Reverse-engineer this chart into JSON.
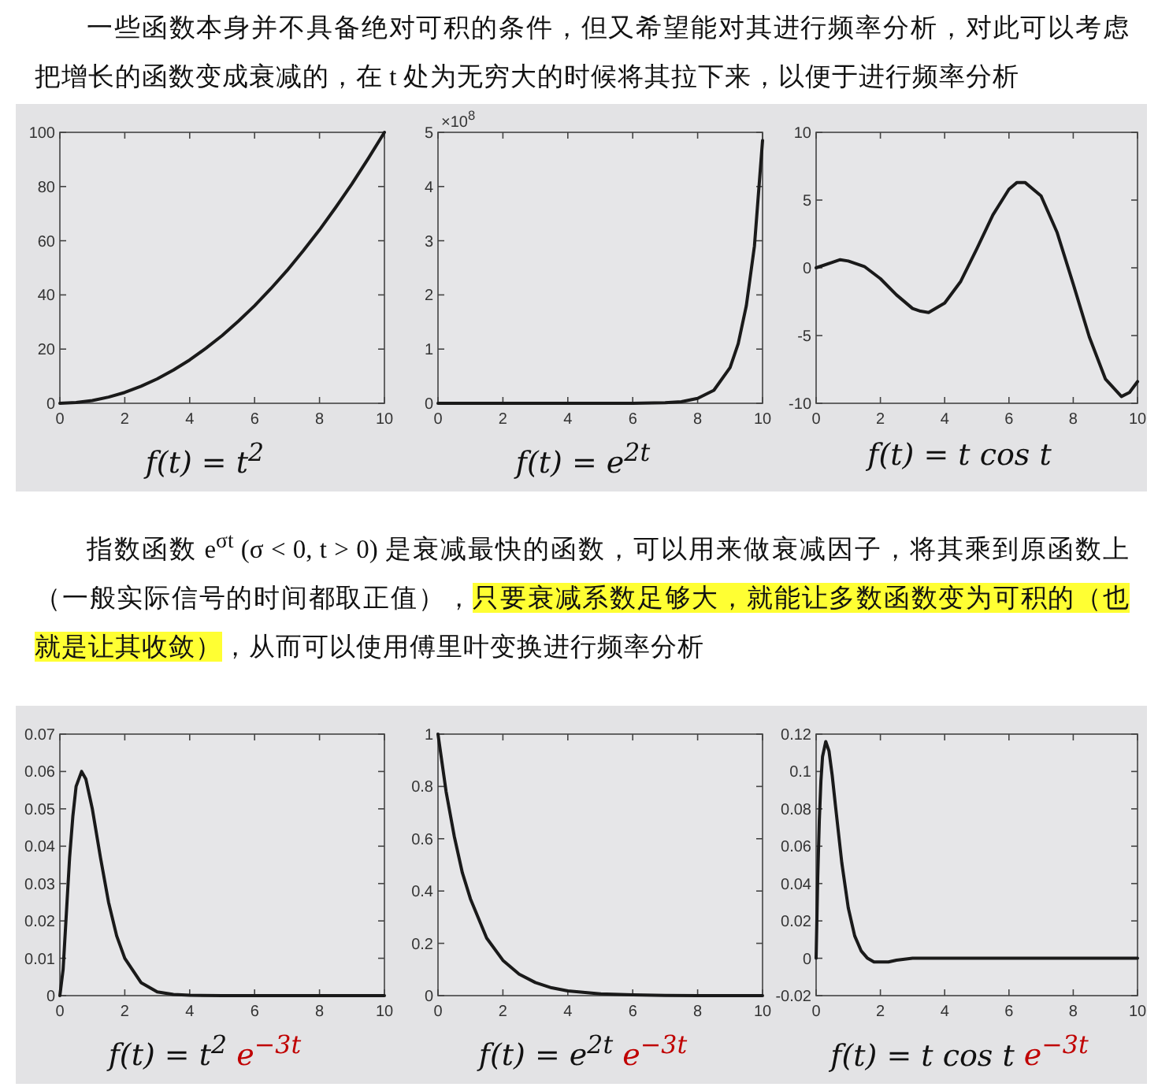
{
  "chart_data": [
    {
      "type": "other",
      "annotations": [
        "一些函数本身并不具备绝对可积的条件，但又希望能对其进行频率分析，对此可以考虑把增长的函数变成衰减的，在 t 处为无穷大的时候将其拉下来，以便于进行频率分析"
      ]
    },
    {
      "type": "line",
      "xlabel": "f(t) = t$^{2}$",
      "xlim": [
        0,
        10
      ],
      "xticks": [
        0,
        2,
        4,
        6,
        8,
        10
      ],
      "ylim": [
        0,
        100
      ],
      "yticks": [
        0,
        20,
        40,
        60,
        80,
        100
      ],
      "x": [
        0,
        0.5,
        1,
        1.5,
        2,
        2.5,
        3,
        3.5,
        4,
        4.5,
        5,
        5.5,
        6,
        6.5,
        7,
        7.5,
        8,
        8.5,
        9,
        9.5,
        10
      ],
      "series": [
        {
          "color": "#1a1a1a",
          "values": [
            0,
            0.3,
            1,
            2.3,
            4,
            6.3,
            9,
            12.3,
            16,
            20.3,
            25,
            30.3,
            36,
            42.3,
            49,
            56.3,
            64,
            72.3,
            81,
            90.3,
            100
          ]
        }
      ]
    },
    {
      "type": "line",
      "xlabel": "f(t) = e$^{2t}$",
      "ylabel": "×10$^{8}$",
      "xlim": [
        0,
        10
      ],
      "xticks": [
        0,
        2,
        4,
        6,
        8,
        10
      ],
      "ylim": [
        0,
        5
      ],
      "yticks": [
        0,
        1,
        2,
        3,
        4,
        5
      ],
      "x": [
        0,
        2,
        4,
        6,
        7,
        7.5,
        8,
        8.5,
        9,
        9.25,
        9.5,
        9.75,
        10
      ],
      "series": [
        {
          "color": "#1a1a1a",
          "values": [
            0,
            0,
            0,
            0,
            0.01,
            0.03,
            0.09,
            0.24,
            0.66,
            1.1,
            1.8,
            2.9,
            4.85
          ]
        }
      ]
    },
    {
      "type": "line",
      "xlabel": "f(t) = t cos t",
      "xlim": [
        0,
        10
      ],
      "xticks": [
        0,
        2,
        4,
        6,
        8,
        10
      ],
      "ylim": [
        -10,
        10
      ],
      "yticks": [
        -10,
        -5,
        0,
        5,
        10
      ],
      "x": [
        0,
        0.5,
        0.75,
        1,
        1.5,
        2,
        2.5,
        3,
        3.25,
        3.5,
        4,
        4.5,
        5,
        5.5,
        6,
        6.25,
        6.5,
        7,
        7.5,
        8,
        8.5,
        9,
        9.5,
        9.75,
        10
      ],
      "series": [
        {
          "color": "#1a1a1a",
          "values": [
            0,
            0.4,
            0.6,
            0.5,
            0.1,
            -0.8,
            -2,
            -3,
            -3.2,
            -3.3,
            -2.6,
            -1,
            1.4,
            3.9,
            5.8,
            6.3,
            6.3,
            5.3,
            2.6,
            -1.2,
            -5.1,
            -8.2,
            -9.5,
            -9.2,
            -8.4
          ]
        }
      ]
    },
    {
      "type": "other",
      "annotations": [
        "指数函数 e$^{σt}$ (σ < 0, t > 0) 是衰减最快的函数，可以用来做衰减因子，将其乘到原函数上（一般实际信号的时间都取正值），",
        "只要衰减系数足够大，就能让多数函数变为可积的（也就是让其收敛）",
        "，从而可以使用傅里叶变换进行频率分析"
      ]
    },
    {
      "type": "line",
      "xlabel": "f(t) = t$^{2}$",
      "annotations": [
        "e$^{−3t}$"
      ],
      "xlim": [
        0,
        10
      ],
      "xticks": [
        0,
        2,
        4,
        6,
        8,
        10
      ],
      "ylim": [
        0,
        0.07
      ],
      "yticks": [
        0,
        0.01,
        0.02,
        0.03,
        0.04,
        0.05,
        0.06,
        0.07
      ],
      "x": [
        0,
        0.1,
        0.2,
        0.3,
        0.4,
        0.5,
        0.67,
        0.8,
        1,
        1.25,
        1.5,
        1.75,
        2,
        2.5,
        3,
        3.5,
        4,
        5,
        6,
        8,
        10
      ],
      "series": [
        {
          "color": "#1a1a1a",
          "values": [
            0,
            0.007,
            0.022,
            0.037,
            0.048,
            0.056,
            0.06,
            0.058,
            0.05,
            0.037,
            0.025,
            0.016,
            0.01,
            0.0035,
            0.001,
            0.0003,
            0.0001,
            0,
            0,
            0,
            0
          ]
        }
      ]
    },
    {
      "type": "line",
      "xlabel": "f(t) = e$^{2t}$",
      "annotations": [
        "e$^{−3t}$"
      ],
      "xlim": [
        0,
        10
      ],
      "xticks": [
        0,
        2,
        4,
        6,
        8,
        10
      ],
      "ylim": [
        0,
        1
      ],
      "yticks": [
        0,
        0.2,
        0.4,
        0.6,
        0.8,
        1
      ],
      "x": [
        0,
        0.25,
        0.5,
        0.75,
        1,
        1.5,
        2,
        2.5,
        3,
        3.5,
        4,
        5,
        6,
        7,
        8,
        10
      ],
      "series": [
        {
          "color": "#1a1a1a",
          "values": [
            1,
            0.78,
            0.61,
            0.47,
            0.37,
            0.22,
            0.135,
            0.082,
            0.05,
            0.03,
            0.018,
            0.007,
            0.003,
            0.001,
            0,
            0
          ]
        }
      ]
    },
    {
      "type": "line",
      "xlabel": "f(t) = t cos t",
      "annotations": [
        "e$^{−3t}$"
      ],
      "xlim": [
        0,
        10
      ],
      "xticks": [
        0,
        2,
        4,
        6,
        8,
        10
      ],
      "ylim": [
        -0.02,
        0.12
      ],
      "yticks": [
        -0.02,
        0,
        0.02,
        0.04,
        0.06,
        0.08,
        0.1,
        0.12
      ],
      "x": [
        0,
        0.05,
        0.1,
        0.15,
        0.2,
        0.3,
        0.4,
        0.5,
        0.6,
        0.8,
        1,
        1.2,
        1.4,
        1.6,
        1.8,
        2,
        2.25,
        2.5,
        3,
        4,
        6,
        8,
        10
      ],
      "series": [
        {
          "color": "#1a1a1a",
          "values": [
            0,
            0.043,
            0.074,
            0.095,
            0.108,
            0.116,
            0.111,
            0.098,
            0.082,
            0.051,
            0.027,
            0.012,
            0.004,
            0,
            -0.002,
            -0.002,
            -0.002,
            -0.001,
            0,
            0,
            0,
            0,
            0
          ]
        }
      ]
    }
  ]
}
